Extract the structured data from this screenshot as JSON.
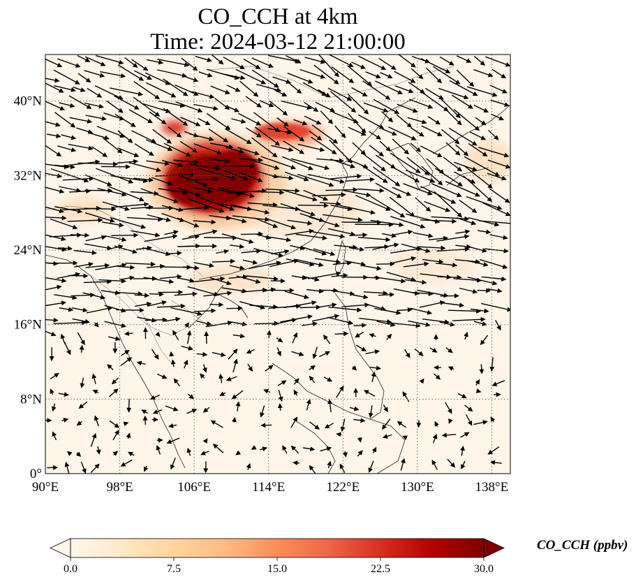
{
  "title": {
    "line1": "CO_CCH at 4km",
    "line2": "Time: 2024-03-12 21:00:00"
  },
  "map": {
    "projection": "PlateCarree",
    "lon_range": [
      90,
      140
    ],
    "lat_range": [
      0,
      45
    ],
    "gridlines": "dotted",
    "xticks": [
      {
        "label": "90°E",
        "value": 90
      },
      {
        "label": "98°E",
        "value": 98
      },
      {
        "label": "106°E",
        "value": 106
      },
      {
        "label": "114°E",
        "value": 114
      },
      {
        "label": "122°E",
        "value": 122
      },
      {
        "label": "130°E",
        "value": 130
      },
      {
        "label": "138°E",
        "value": 138
      }
    ],
    "yticks": [
      {
        "label": "0°",
        "value": 0
      },
      {
        "label": "8°N",
        "value": 8
      },
      {
        "label": "16°N",
        "value": 16
      },
      {
        "label": "24°N",
        "value": 24
      },
      {
        "label": "32°N",
        "value": 32
      },
      {
        "label": "40°N",
        "value": 40
      }
    ],
    "field": "CO_CCH",
    "plume_high_region_center": [
      108,
      31
    ],
    "wind_vectors": "westerly north of ~15°N, weak and variable south of ~15°N"
  },
  "colorbar": {
    "label": "CO_CCH (ppbv)",
    "cmap": "OrRd",
    "min": 0.0,
    "max": 30.0,
    "extend": "both",
    "ticks": [
      "0.0",
      "7.5",
      "15.0",
      "22.5",
      "30.0"
    ],
    "colors": [
      "#fff7ec",
      "#fee8c8",
      "#fdd49e",
      "#fdbb84",
      "#fc8d59",
      "#ef6548",
      "#d7301f",
      "#b30000",
      "#7f0000"
    ]
  }
}
